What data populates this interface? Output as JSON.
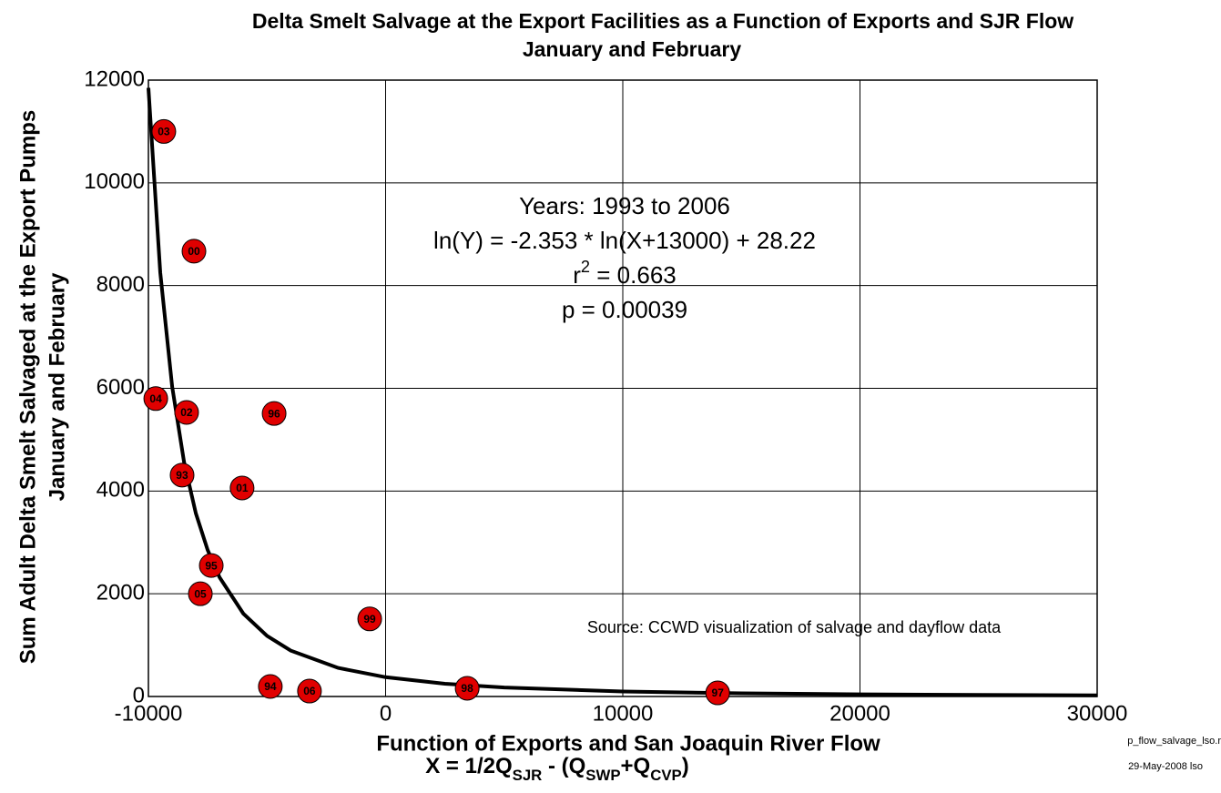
{
  "chart_data": {
    "type": "scatter",
    "title": [
      "Delta Smelt Salvage at the Export Facilities as a Function of Exports and SJR Flow",
      "January  and February"
    ],
    "ylabel": [
      "Sum Adult Delta Smelt Salvaged at the Export Pumps",
      "January and February"
    ],
    "xlabel": "Function of Exports and San Joaquin River Flow",
    "xlabel_formula": [
      {
        "text": "X = 1/2Q"
      },
      {
        "sub": "SJR"
      },
      {
        "text": " - (Q"
      },
      {
        "sub": "SWP"
      },
      {
        "text": "+Q"
      },
      {
        "sub": "CVP"
      },
      {
        "text": ")"
      }
    ],
    "annotations": [
      [
        {
          "text": "Years: 1993 to 2006"
        }
      ],
      [
        {
          "text": "ln(Y) = -2.353 * ln(X+13000) + 28.22"
        }
      ],
      [
        {
          "text": "r"
        },
        {
          "sup": "2"
        },
        {
          "text": " = 0.663"
        }
      ],
      [
        {
          "text": "p = 0.00039"
        }
      ]
    ],
    "source": "Source:  CCWD visualization of salvage and dayflow data",
    "footer": [
      "p_flow_salvage_lso.r",
      "29-May-2008 lso"
    ],
    "xlim": [
      -10000,
      30000
    ],
    "ylim": [
      0,
      12000
    ],
    "xticks": [
      -10000,
      0,
      10000,
      20000,
      30000
    ],
    "yticks": [
      0,
      2000,
      4000,
      6000,
      8000,
      10000,
      12000
    ],
    "grid": true,
    "series": [
      {
        "color": "#e00000",
        "labels": [
          "03",
          "00",
          "04",
          "02",
          "96",
          "93",
          "01",
          "95",
          "05",
          "99",
          "94",
          "06",
          "98",
          "97"
        ],
        "x": [
          -9350,
          -8080,
          -9690,
          -8390,
          -4700,
          -8580,
          -6050,
          -7350,
          -7810,
          -670,
          -4860,
          -3210,
          3440,
          14000
        ],
        "values": [
          11000,
          8670,
          5800,
          5530,
          5510,
          4310,
          4060,
          2550,
          2000,
          1510,
          195,
          106,
          160,
          70
        ]
      }
    ],
    "fit": {
      "color": "#000000",
      "x": [
        -10000,
        -9500,
        -9000,
        -8500,
        -8000,
        -7500,
        -7000,
        -6000,
        -5000,
        -4000,
        -2000,
        0,
        2500,
        5000,
        10000,
        15000,
        20000,
        25000,
        30000
      ],
      "values": [
        11850,
        8255,
        6030,
        4570,
        3565,
        2850,
        2320,
        1614,
        1181,
        894,
        557,
        376,
        249,
        175,
        98,
        62,
        42,
        30,
        23
      ]
    }
  }
}
